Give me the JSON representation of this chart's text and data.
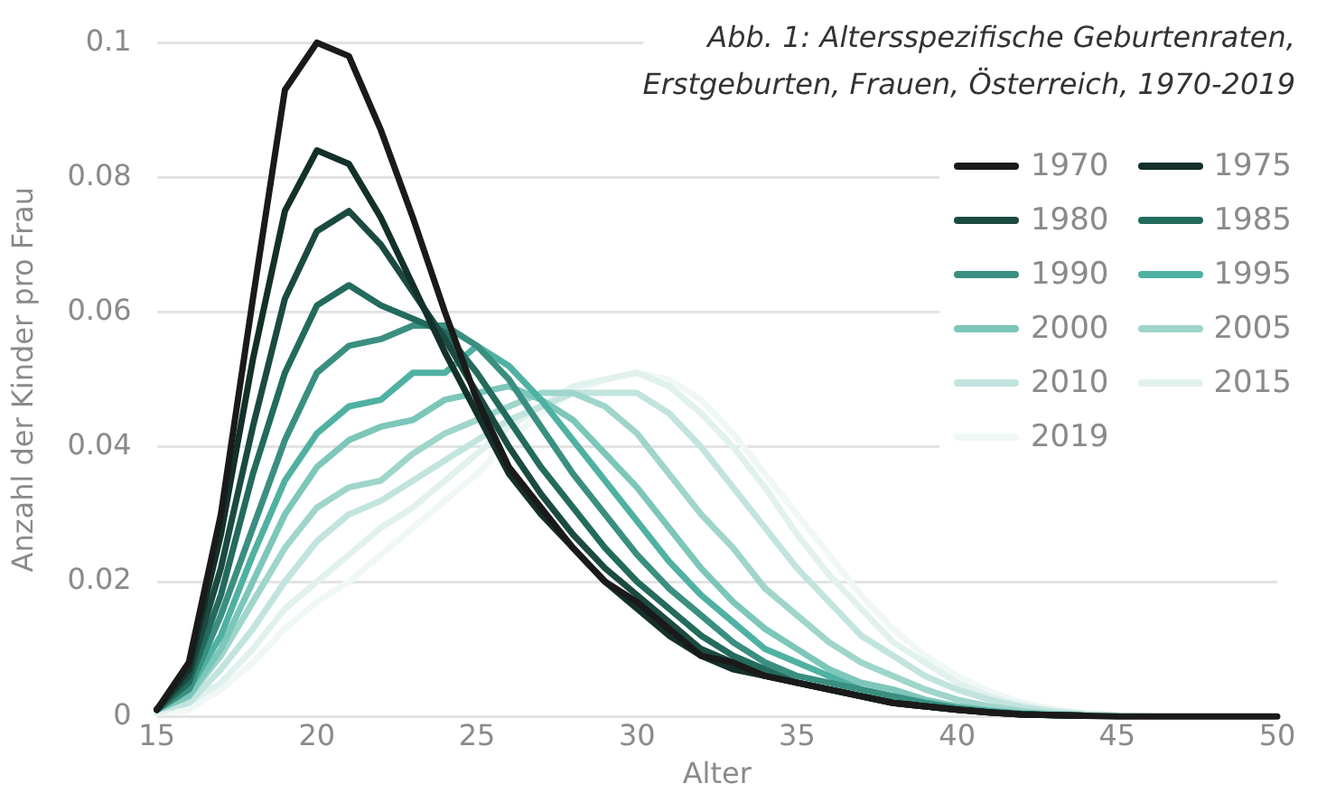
{
  "chart_data": {
    "type": "line",
    "title": "Abb. 1: Altersspezifische Geburtenraten,\nErstgeburten, Frauen, Österreich, 1970-2019",
    "xlabel": "Alter",
    "ylabel": "Anzahl der Kinder pro Frau",
    "x": [
      15,
      16,
      17,
      18,
      19,
      20,
      21,
      22,
      23,
      24,
      25,
      26,
      27,
      28,
      29,
      30,
      31,
      32,
      33,
      34,
      35,
      36,
      37,
      38,
      39,
      40,
      41,
      42,
      43,
      44,
      45,
      46,
      47,
      48,
      49,
      50
    ],
    "series": [
      {
        "name": "1970",
        "color": "#1a1a1a",
        "values": [
          0.001,
          0.008,
          0.03,
          0.062,
          0.093,
          0.1,
          0.098,
          0.087,
          0.074,
          0.06,
          0.047,
          0.037,
          0.031,
          0.025,
          0.02,
          0.017,
          0.013,
          0.009,
          0.008,
          0.006,
          0.005,
          0.004,
          0.003,
          0.002,
          0.0015,
          0.001,
          0.0006,
          0.0003,
          0.0002,
          0.0001,
          0,
          0,
          0,
          0,
          0,
          0
        ]
      },
      {
        "name": "1975",
        "color": "#14302a",
        "values": [
          0.001,
          0.007,
          0.027,
          0.053,
          0.075,
          0.084,
          0.082,
          0.074,
          0.064,
          0.054,
          0.045,
          0.036,
          0.03,
          0.025,
          0.02,
          0.016,
          0.012,
          0.009,
          0.007,
          0.006,
          0.005,
          0.004,
          0.003,
          0.002,
          0.0015,
          0.001,
          0.0006,
          0.0003,
          0.0002,
          0.0001,
          null,
          null,
          null,
          null,
          null,
          null
        ]
      },
      {
        "name": "1980",
        "color": "#1b4a40",
        "values": [
          0.001,
          0.006,
          0.022,
          0.043,
          0.062,
          0.072,
          0.075,
          0.07,
          0.063,
          0.056,
          0.048,
          0.04,
          0.033,
          0.027,
          0.022,
          0.018,
          0.014,
          0.01,
          0.008,
          0.006,
          0.005,
          0.004,
          0.003,
          0.002,
          0.0015,
          0.001,
          0.0006,
          0.0003,
          0.0002,
          0.0001,
          null,
          null,
          null,
          null,
          null,
          null
        ]
      },
      {
        "name": "1985",
        "color": "#226b5d",
        "values": [
          0.001,
          0.005,
          0.018,
          0.036,
          0.051,
          0.061,
          0.064,
          0.061,
          0.059,
          0.057,
          0.051,
          0.044,
          0.037,
          0.031,
          0.025,
          0.02,
          0.016,
          0.012,
          0.009,
          0.007,
          0.005,
          0.004,
          0.003,
          0.002,
          0.0015,
          0.001,
          0.0006,
          0.0003,
          0.0002,
          0.0001,
          null,
          null,
          null,
          null,
          null,
          null
        ]
      },
      {
        "name": "1990",
        "color": "#3a8f80",
        "values": [
          0.001,
          0.004,
          0.015,
          0.028,
          0.041,
          0.051,
          0.055,
          0.056,
          0.058,
          0.058,
          0.055,
          0.05,
          0.043,
          0.036,
          0.03,
          0.024,
          0.019,
          0.015,
          0.011,
          0.008,
          0.006,
          0.005,
          0.004,
          0.003,
          0.002,
          0.0012,
          0.0007,
          0.0004,
          0.0002,
          0.0001,
          null,
          null,
          null,
          null,
          null,
          null
        ]
      },
      {
        "name": "1995",
        "color": "#4fb1a2",
        "values": [
          0.001,
          0.004,
          0.012,
          0.024,
          0.035,
          0.042,
          0.046,
          0.047,
          0.051,
          0.051,
          0.055,
          0.052,
          0.047,
          0.041,
          0.035,
          0.029,
          0.023,
          0.018,
          0.014,
          0.01,
          0.008,
          0.006,
          0.004,
          0.003,
          0.002,
          0.0013,
          0.0008,
          0.0004,
          0.0002,
          0.0001,
          null,
          null,
          null,
          null,
          null,
          null
        ]
      },
      {
        "name": "2000",
        "color": "#7cc6ba",
        "values": [
          0.001,
          0.003,
          0.01,
          0.02,
          0.03,
          0.037,
          0.041,
          0.043,
          0.044,
          0.047,
          0.048,
          0.049,
          0.047,
          0.044,
          0.039,
          0.034,
          0.028,
          0.022,
          0.017,
          0.013,
          0.01,
          0.007,
          0.005,
          0.004,
          0.0025,
          0.0015,
          0.0009,
          0.0005,
          0.0003,
          0.0001,
          null,
          null,
          null,
          null,
          null,
          null
        ]
      },
      {
        "name": "2005",
        "color": "#9fd5cb",
        "values": [
          0.001,
          0.003,
          0.009,
          0.017,
          0.025,
          0.031,
          0.034,
          0.035,
          0.039,
          0.042,
          0.044,
          0.046,
          0.048,
          0.048,
          0.046,
          0.042,
          0.036,
          0.03,
          0.025,
          0.019,
          0.015,
          0.011,
          0.008,
          0.006,
          0.004,
          0.0025,
          0.0015,
          0.0008,
          0.0004,
          0.0002,
          0.0001,
          null,
          null,
          null,
          null,
          null
        ]
      },
      {
        "name": "2010",
        "color": "#c2e4de",
        "values": [
          0.001,
          0.002,
          0.007,
          0.013,
          0.02,
          0.026,
          0.03,
          0.032,
          0.035,
          0.038,
          0.041,
          0.044,
          0.046,
          0.048,
          0.048,
          0.048,
          0.045,
          0.04,
          0.034,
          0.028,
          0.022,
          0.017,
          0.012,
          0.009,
          0.006,
          0.004,
          0.0025,
          0.0014,
          0.0007,
          0.0003,
          0.0001,
          null,
          null,
          null,
          null,
          null
        ]
      },
      {
        "name": "2015",
        "color": "#e1f1ee",
        "values": [
          0.0005,
          0.002,
          0.005,
          0.01,
          0.016,
          0.02,
          0.024,
          0.028,
          0.031,
          0.035,
          0.039,
          0.043,
          0.046,
          0.049,
          0.05,
          0.051,
          0.049,
          0.045,
          0.04,
          0.034,
          0.027,
          0.021,
          0.016,
          0.011,
          0.008,
          0.005,
          0.003,
          0.0017,
          0.0009,
          0.0004,
          0.0002,
          0.0001,
          null,
          null,
          null,
          null
        ]
      },
      {
        "name": "2019",
        "color": "#f0f8f6",
        "values": [
          0.0005,
          0.001,
          0.004,
          0.008,
          0.013,
          0.017,
          0.02,
          0.024,
          0.028,
          0.032,
          0.036,
          0.041,
          0.045,
          0.048,
          0.05,
          0.051,
          0.05,
          0.047,
          0.042,
          0.036,
          0.03,
          0.024,
          0.018,
          0.013,
          0.009,
          0.006,
          0.0037,
          0.0021,
          0.0011,
          0.0005,
          0.0002,
          0.0001,
          null,
          null,
          null,
          null
        ]
      }
    ],
    "xlim": [
      15,
      50
    ],
    "xticks": [
      15,
      20,
      25,
      30,
      35,
      40,
      45,
      50
    ],
    "ylim": [
      0,
      0.1
    ],
    "yticks": [
      0,
      0.02,
      0.04,
      0.06,
      0.08,
      0.1
    ],
    "grid": "y",
    "legend": "right",
    "marker": "none",
    "line_style": "solid"
  }
}
